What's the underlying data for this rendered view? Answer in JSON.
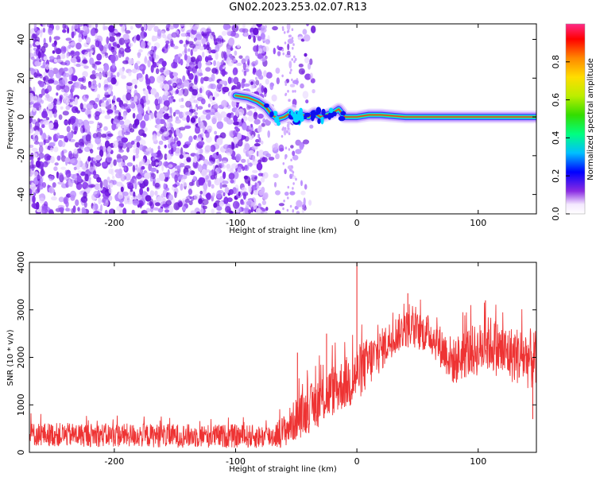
{
  "title": "GN02.2023.253.02.07.R13",
  "chart_data": [
    {
      "type": "heatmap",
      "xlabel": "Height of straight line (km)",
      "ylabel": "Frequency (Hz)",
      "xlim": [
        -270,
        148
      ],
      "ylim": [
        -50,
        48
      ],
      "xticks": [
        -200,
        -100,
        0,
        100
      ],
      "yticks": [
        -40,
        -20,
        0,
        20,
        40
      ],
      "colorbar": {
        "label": "Normalized spectral amplitude",
        "range": [
          0.0,
          1.0
        ],
        "ticks": [
          0.0,
          0.2,
          0.4,
          0.6,
          0.8
        ]
      },
      "signal_trace": {
        "x": [
          -100,
          -90,
          -82,
          -75,
          -70,
          -65,
          -60,
          -55,
          -50,
          -45,
          -40,
          -35,
          -30,
          -25,
          -20,
          -15,
          -10,
          -5,
          0,
          10,
          20,
          40,
          60,
          80,
          100,
          120,
          148
        ],
        "y": [
          11,
          10,
          8,
          5,
          1,
          -1,
          0,
          2,
          -1,
          1,
          0,
          2,
          0,
          1,
          2,
          4,
          0,
          0,
          0,
          1,
          1,
          0,
          0,
          0,
          0,
          0,
          0
        ]
      },
      "noise_region_x": [
        -270,
        -60
      ]
    },
    {
      "type": "line",
      "xlabel": "Height of straight line (km)",
      "ylabel": "SNR (10 * v/v)",
      "xlim": [
        -270,
        148
      ],
      "ylim": [
        0,
        4000
      ],
      "xticks": [
        -200,
        -100,
        0,
        100
      ],
      "yticks": [
        0,
        1000,
        2000,
        3000,
        4000
      ],
      "series": [
        {
          "color": "#ee3333",
          "envelope_x": [
            -270,
            -240,
            -200,
            -150,
            -100,
            -80,
            -70,
            -60,
            -50,
            -40,
            -30,
            -20,
            -10,
            -5,
            0,
            10,
            20,
            30,
            40,
            50,
            60,
            70,
            80,
            90,
            100,
            110,
            120,
            130,
            140,
            148
          ],
          "envelope_mean": [
            380,
            370,
            360,
            350,
            340,
            330,
            340,
            450,
            700,
            900,
            1100,
            1300,
            1450,
            1500,
            1650,
            1900,
            2150,
            2450,
            2600,
            2550,
            2500,
            2200,
            1900,
            2100,
            2150,
            2300,
            2100,
            2050,
            2000,
            1900
          ],
          "envelope_spread": [
            250,
            250,
            250,
            250,
            250,
            250,
            250,
            350,
            450,
            500,
            550,
            550,
            550,
            600,
            600,
            550,
            450,
            400,
            400,
            400,
            400,
            450,
            500,
            550,
            550,
            600,
            600,
            600,
            650,
            650
          ],
          "spikes": [
            {
              "x": 0,
              "y": 4000
            },
            {
              "x": -49,
              "y": 2100
            },
            {
              "x": -25,
              "y": 2500
            },
            {
              "x": 42,
              "y": 3350
            },
            {
              "x": 106,
              "y": 3200
            },
            {
              "x": 145,
              "y": 700
            }
          ]
        }
      ]
    }
  ]
}
